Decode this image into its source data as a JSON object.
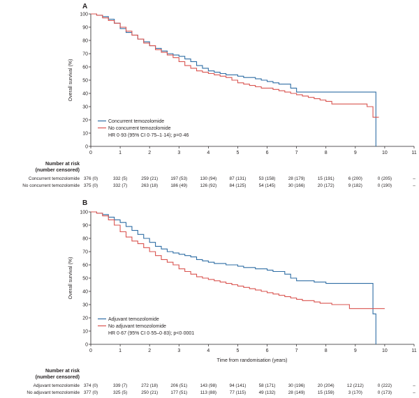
{
  "chart_data": [
    {
      "type": "line",
      "panel": "A",
      "ylabel": "Overall survival (%)",
      "xlabel": "",
      "xlim": [
        0,
        11
      ],
      "ylim": [
        0,
        100
      ],
      "x_ticks": [
        "0",
        "1",
        "2",
        "3",
        "4",
        "5",
        "6",
        "7",
        "8",
        "9",
        "10",
        "11"
      ],
      "y_ticks": [
        "0",
        "10",
        "20",
        "30",
        "40",
        "50",
        "60",
        "70",
        "80",
        "90",
        "100"
      ],
      "legend_position": "bottom-left",
      "annotation": "HR 0·93 (95% CI 0·75–1·14); p=0·46",
      "series": [
        {
          "name": "Concurrent temozolomide",
          "color": "#2e6da4",
          "points": [
            [
              0,
              100
            ],
            [
              0.2,
              99
            ],
            [
              0.4,
              98
            ],
            [
              0.6,
              96
            ],
            [
              0.8,
              93
            ],
            [
              1.0,
              89
            ],
            [
              1.2,
              86
            ],
            [
              1.4,
              84
            ],
            [
              1.6,
              81
            ],
            [
              1.8,
              79
            ],
            [
              2.0,
              76
            ],
            [
              2.2,
              74
            ],
            [
              2.4,
              72
            ],
            [
              2.6,
              70
            ],
            [
              2.8,
              69
            ],
            [
              3.0,
              68
            ],
            [
              3.2,
              66
            ],
            [
              3.4,
              64
            ],
            [
              3.6,
              61
            ],
            [
              3.8,
              59
            ],
            [
              4.0,
              57
            ],
            [
              4.2,
              56
            ],
            [
              4.4,
              55
            ],
            [
              4.6,
              54
            ],
            [
              4.8,
              54
            ],
            [
              5.0,
              53
            ],
            [
              5.2,
              52
            ],
            [
              5.4,
              52
            ],
            [
              5.6,
              51
            ],
            [
              5.8,
              50
            ],
            [
              6.0,
              49
            ],
            [
              6.2,
              48
            ],
            [
              6.4,
              47
            ],
            [
              6.6,
              47
            ],
            [
              6.8,
              44
            ],
            [
              7.0,
              41
            ],
            [
              7.4,
              41
            ],
            [
              8.0,
              41
            ],
            [
              8.6,
              41
            ],
            [
              9.0,
              41
            ],
            [
              9.4,
              41
            ],
            [
              9.7,
              41
            ],
            [
              9.7,
              0
            ]
          ]
        },
        {
          "name": "No concurrent temozolomide",
          "color": "#d9534f",
          "points": [
            [
              0,
              100
            ],
            [
              0.2,
              99
            ],
            [
              0.4,
              97
            ],
            [
              0.6,
              95
            ],
            [
              0.8,
              93
            ],
            [
              1.0,
              90
            ],
            [
              1.2,
              87
            ],
            [
              1.4,
              84
            ],
            [
              1.6,
              81
            ],
            [
              1.8,
              78
            ],
            [
              2.0,
              76
            ],
            [
              2.2,
              73
            ],
            [
              2.4,
              71
            ],
            [
              2.6,
              69
            ],
            [
              2.8,
              67
            ],
            [
              3.0,
              64
            ],
            [
              3.2,
              61
            ],
            [
              3.4,
              59
            ],
            [
              3.6,
              57
            ],
            [
              3.8,
              56
            ],
            [
              4.0,
              55
            ],
            [
              4.2,
              54
            ],
            [
              4.4,
              53
            ],
            [
              4.6,
              52
            ],
            [
              4.8,
              50
            ],
            [
              5.0,
              48
            ],
            [
              5.2,
              47
            ],
            [
              5.4,
              46
            ],
            [
              5.6,
              45
            ],
            [
              5.8,
              44
            ],
            [
              6.0,
              44
            ],
            [
              6.2,
              43
            ],
            [
              6.4,
              42
            ],
            [
              6.6,
              41
            ],
            [
              6.8,
              40
            ],
            [
              7.0,
              39
            ],
            [
              7.2,
              38
            ],
            [
              7.4,
              37
            ],
            [
              7.6,
              36
            ],
            [
              7.8,
              35
            ],
            [
              8.0,
              34
            ],
            [
              8.2,
              32
            ],
            [
              8.6,
              32
            ],
            [
              9.0,
              32
            ],
            [
              9.4,
              30
            ],
            [
              9.6,
              22
            ],
            [
              9.8,
              22
            ]
          ]
        }
      ],
      "risk_table": {
        "heading_line1": "Number at risk",
        "heading_line2": "(number censored)",
        "rows": [
          {
            "label": "Concurrent temozolomide",
            "values": [
              "376 (0)",
              "332 (5)",
              "259 (21)",
              "197 (53)",
              "130 (94)",
              "87 (131)",
              "53 (158)",
              "28 (179)",
              "15 (191)",
              "6 (200)",
              "0 (205)",
              "–"
            ]
          },
          {
            "label": "No concurrent temozolomide",
            "values": [
              "375 (0)",
              "332 (7)",
              "263 (18)",
              "186 (49)",
              "126 (92)",
              "84 (125)",
              "54 (145)",
              "30 (166)",
              "20 (172)",
              "9 (182)",
              "0 (190)",
              "–"
            ]
          }
        ]
      }
    },
    {
      "type": "line",
      "panel": "B",
      "ylabel": "Overall survival (%)",
      "xlabel": "Time from randomisation (years)",
      "xlim": [
        0,
        11
      ],
      "ylim": [
        0,
        100
      ],
      "x_ticks": [
        "0",
        "1",
        "2",
        "3",
        "4",
        "5",
        "6",
        "7",
        "8",
        "9",
        "10",
        "11"
      ],
      "y_ticks": [
        "0",
        "10",
        "20",
        "30",
        "40",
        "50",
        "60",
        "70",
        "80",
        "90",
        "100"
      ],
      "legend_position": "bottom-left",
      "annotation": "HR 0·67 (95% CI 0·55–0·83); p<0·0001",
      "series": [
        {
          "name": "Adjuvant temozolomide",
          "color": "#2e6da4",
          "points": [
            [
              0,
              100
            ],
            [
              0.2,
              99
            ],
            [
              0.4,
              98
            ],
            [
              0.6,
              96
            ],
            [
              0.8,
              94
            ],
            [
              1.0,
              92
            ],
            [
              1.2,
              89
            ],
            [
              1.4,
              86
            ],
            [
              1.6,
              83
            ],
            [
              1.8,
              80
            ],
            [
              2.0,
              77
            ],
            [
              2.2,
              74
            ],
            [
              2.4,
              72
            ],
            [
              2.6,
              70
            ],
            [
              2.8,
              69
            ],
            [
              3.0,
              68
            ],
            [
              3.2,
              67
            ],
            [
              3.4,
              66
            ],
            [
              3.6,
              64
            ],
            [
              3.8,
              63
            ],
            [
              4.0,
              62
            ],
            [
              4.2,
              61
            ],
            [
              4.4,
              61
            ],
            [
              4.6,
              60
            ],
            [
              4.8,
              60
            ],
            [
              5.0,
              59
            ],
            [
              5.2,
              58
            ],
            [
              5.4,
              58
            ],
            [
              5.6,
              57
            ],
            [
              5.8,
              57
            ],
            [
              6.0,
              56
            ],
            [
              6.2,
              55
            ],
            [
              6.4,
              55
            ],
            [
              6.6,
              53
            ],
            [
              6.8,
              50
            ],
            [
              7.0,
              48
            ],
            [
              7.4,
              48
            ],
            [
              7.6,
              47
            ],
            [
              7.8,
              47
            ],
            [
              8.0,
              46
            ],
            [
              8.6,
              46
            ],
            [
              9.0,
              46
            ],
            [
              9.4,
              46
            ],
            [
              9.6,
              46
            ],
            [
              9.6,
              23
            ],
            [
              9.7,
              23
            ],
            [
              9.7,
              0
            ]
          ]
        },
        {
          "name": "No adjuvant temozolomide",
          "color": "#d9534f",
          "points": [
            [
              0,
              100
            ],
            [
              0.2,
              99
            ],
            [
              0.4,
              97
            ],
            [
              0.6,
              94
            ],
            [
              0.8,
              90
            ],
            [
              1.0,
              85
            ],
            [
              1.2,
              81
            ],
            [
              1.4,
              78
            ],
            [
              1.6,
              76
            ],
            [
              1.8,
              73
            ],
            [
              2.0,
              70
            ],
            [
              2.2,
              67
            ],
            [
              2.4,
              64
            ],
            [
              2.6,
              62
            ],
            [
              2.8,
              60
            ],
            [
              3.0,
              57
            ],
            [
              3.2,
              55
            ],
            [
              3.4,
              53
            ],
            [
              3.6,
              51
            ],
            [
              3.8,
              50
            ],
            [
              4.0,
              49
            ],
            [
              4.2,
              48
            ],
            [
              4.4,
              47
            ],
            [
              4.6,
              46
            ],
            [
              4.8,
              45
            ],
            [
              5.0,
              44
            ],
            [
              5.2,
              43
            ],
            [
              5.4,
              42
            ],
            [
              5.6,
              41
            ],
            [
              5.8,
              40
            ],
            [
              6.0,
              39
            ],
            [
              6.2,
              38
            ],
            [
              6.4,
              37
            ],
            [
              6.6,
              36
            ],
            [
              6.8,
              35
            ],
            [
              7.0,
              34
            ],
            [
              7.2,
              33
            ],
            [
              7.4,
              33
            ],
            [
              7.6,
              32
            ],
            [
              7.8,
              31
            ],
            [
              8.0,
              31
            ],
            [
              8.2,
              30
            ],
            [
              8.4,
              30
            ],
            [
              8.8,
              27
            ],
            [
              9.2,
              27
            ],
            [
              9.6,
              27
            ],
            [
              10.0,
              27
            ]
          ]
        }
      ],
      "risk_table": {
        "heading_line1": "Number at risk",
        "heading_line2": "(number censored)",
        "rows": [
          {
            "label": "Adjuvant temozolomide",
            "values": [
              "374 (0)",
              "339 (7)",
              "272 (18)",
              "206 (51)",
              "143 (98)",
              "94 (141)",
              "58 (171)",
              "30 (196)",
              "20 (204)",
              "12 (212)",
              "0 (222)",
              "–"
            ]
          },
          {
            "label": "No adjuvant temozolomide",
            "values": [
              "377 (0)",
              "325 (5)",
              "250 (21)",
              "177 (51)",
              "113 (88)",
              "77 (115)",
              "49 (132)",
              "28 (149)",
              "15 (159)",
              "3 (170)",
              "0 (173)",
              "–"
            ]
          }
        ]
      }
    }
  ]
}
